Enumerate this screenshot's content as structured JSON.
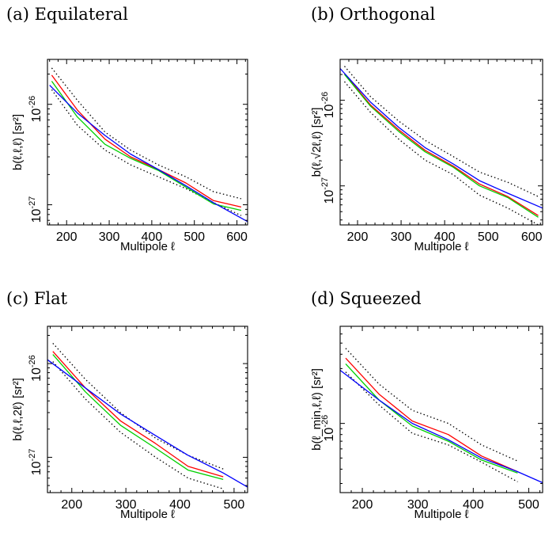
{
  "chart_data": [
    {
      "type": "line",
      "title": "(a) Equilateral",
      "xlabel": "Multipole ℓ",
      "ylabel": "b(ℓ,ℓ,ℓ) [sr²]",
      "yscale": "log",
      "xlim": [
        155,
        625
      ],
      "ylim": [
        6.3e-28,
        2.8e-26
      ],
      "xticks": [
        200,
        300,
        400,
        500,
        600
      ],
      "yticks": [
        {
          "value": 1e-26,
          "base": "10",
          "exp": "-26"
        },
        {
          "value": 1e-27,
          "base": "10",
          "exp": "-27"
        }
      ],
      "series": [
        {
          "color": "#000000",
          "dash": true,
          "x": [
            165,
            225,
            290,
            350,
            415,
            480,
            545,
            610
          ],
          "y": [
            2.3e-26,
            1.1e-26,
            5.3e-27,
            3.5e-27,
            2.5e-27,
            1.9e-27,
            1.35e-27,
            1.15e-27
          ]
        },
        {
          "color": "#000000",
          "dash": true,
          "x": [
            165,
            225,
            290,
            350,
            415,
            480,
            545,
            610
          ],
          "y": [
            1.4e-26,
            6.2e-27,
            3.5e-27,
            2.5e-27,
            1.9e-27,
            1.45e-27,
            1.05e-27,
            7.8e-28
          ]
        },
        {
          "color": "#ff0000",
          "x": [
            165,
            225,
            290,
            350,
            415,
            480,
            545,
            610
          ],
          "y": [
            1.95e-26,
            8.8e-27,
            4.5e-27,
            3e-27,
            2.25e-27,
            1.65e-27,
            1.1e-27,
            9.5e-28
          ]
        },
        {
          "color": "#00d000",
          "x": [
            165,
            225,
            290,
            350,
            415,
            480,
            545,
            610
          ],
          "y": [
            1.7e-26,
            7.5e-27,
            4e-27,
            2.9e-27,
            2.2e-27,
            1.5e-27,
            1.02e-27,
            8.8e-28
          ]
        },
        {
          "color": "#0000ff",
          "x": [
            160,
            225,
            290,
            350,
            415,
            480,
            545,
            625
          ],
          "y": [
            1.55e-26,
            8.2e-27,
            4.9e-27,
            3.2e-27,
            2.25e-27,
            1.55e-27,
            1.05e-27,
            6.8e-28
          ]
        }
      ]
    },
    {
      "type": "line",
      "title": "(b) Orthogonal",
      "xlabel": "Multipole ℓ",
      "ylabel": "b(ℓ,√2ℓ,ℓ) [sr²]",
      "yscale": "log",
      "xlim": [
        160,
        625
      ],
      "ylim": [
        3.5e-28,
        3e-26
      ],
      "xticks": [
        200,
        300,
        400,
        500,
        600
      ],
      "yticks": [
        {
          "value": 1e-26,
          "base": "10",
          "exp": "-26"
        },
        {
          "value": 1e-27,
          "base": "10",
          "exp": "-27"
        }
      ],
      "series": [
        {
          "color": "#000000",
          "dash": true,
          "x": [
            170,
            230,
            295,
            355,
            420,
            480,
            545,
            615
          ],
          "y": [
            2.5e-26,
            1.1e-26,
            5.7e-27,
            3.4e-27,
            2.2e-27,
            1.45e-27,
            1.1e-27,
            7.5e-28
          ]
        },
        {
          "color": "#000000",
          "dash": true,
          "x": [
            170,
            230,
            295,
            355,
            420,
            480,
            545,
            615
          ],
          "y": [
            1.65e-26,
            7.2e-27,
            3.5e-27,
            2e-27,
            1.35e-27,
            7.8e-28,
            5.5e-28,
            3.5e-28
          ]
        },
        {
          "color": "#ff0000",
          "x": [
            170,
            230,
            295,
            355,
            420,
            480,
            545,
            615
          ],
          "y": [
            2.05e-26,
            8.8e-27,
            4.5e-27,
            2.6e-27,
            1.7e-27,
            1.05e-27,
            7.5e-28,
            4.5e-28
          ]
        },
        {
          "color": "#00d000",
          "x": [
            170,
            230,
            295,
            355,
            420,
            480,
            545,
            615
          ],
          "y": [
            2e-26,
            8.5e-27,
            4.3e-27,
            2.5e-27,
            1.65e-27,
            1e-27,
            7.3e-28,
            4.3e-28
          ]
        },
        {
          "color": "#0000ff",
          "x": [
            160,
            230,
            295,
            355,
            420,
            480,
            545,
            625
          ],
          "y": [
            2.35e-26,
            9.5e-27,
            4.8e-27,
            2.8e-27,
            1.8e-27,
            1.15e-27,
            8.2e-28,
            5.5e-28
          ]
        }
      ]
    },
    {
      "type": "line",
      "title": "(c) Flat",
      "xlabel": "Multipole ℓ",
      "ylabel": "b(ℓ,ℓ,2ℓ) [sr²]",
      "yscale": "log",
      "xlim": [
        155,
        525
      ],
      "ylim": [
        4.2e-28,
        2.5e-26
      ],
      "xticks": [
        200,
        300,
        400,
        500
      ],
      "yticks": [
        {
          "value": 1e-26,
          "base": "10",
          "exp": "-26"
        },
        {
          "value": 1e-27,
          "base": "10",
          "exp": "-27"
        }
      ],
      "series": [
        {
          "color": "#000000",
          "dash": true,
          "x": [
            165,
            225,
            290,
            355,
            415,
            480
          ],
          "y": [
            1.65e-26,
            6.8e-27,
            3e-27,
            1.6e-27,
            1.05e-27,
            7.5e-28
          ]
        },
        {
          "color": "#000000",
          "dash": true,
          "x": [
            165,
            225,
            290,
            355,
            415,
            480
          ],
          "y": [
            1.05e-26,
            4.2e-27,
            1.85e-27,
            1e-27,
            6e-28,
            4.6e-28
          ]
        },
        {
          "color": "#ff0000",
          "x": [
            165,
            225,
            290,
            355,
            415,
            480
          ],
          "y": [
            1.35e-26,
            5.5e-27,
            2.45e-27,
            1.4e-27,
            8e-28,
            6.2e-28
          ]
        },
        {
          "color": "#00d000",
          "x": [
            165,
            225,
            290,
            355,
            415,
            480
          ],
          "y": [
            1.25e-26,
            5e-27,
            2.2e-27,
            1.25e-27,
            7.3e-28,
            5.8e-28
          ]
        },
        {
          "color": "#0000ff",
          "x": [
            155,
            225,
            290,
            355,
            415,
            480,
            525
          ],
          "y": [
            1.1e-26,
            5.5e-27,
            2.9e-27,
            1.7e-27,
            1.05e-27,
            6.8e-28,
            4.8e-28
          ]
        }
      ]
    },
    {
      "type": "line",
      "title": "(d) Squeezed",
      "xlabel": "Multipole ℓ",
      "ylabel": "b(ℓ_min,ℓ,ℓ) [sr²]",
      "yscale": "log",
      "xlim": [
        160,
        525
      ],
      "ylim": [
        2.5e-27,
        7e-26
      ],
      "xticks": [
        200,
        300,
        400,
        500
      ],
      "yticks": [
        {
          "value": 1e-26,
          "base": "10",
          "exp": "-26"
        }
      ],
      "series": [
        {
          "color": "#000000",
          "dash": true,
          "x": [
            170,
            230,
            290,
            355,
            415,
            480
          ],
          "y": [
            4.5e-26,
            2.2e-26,
            1.3e-26,
            1e-26,
            6.5e-27,
            4.7e-27
          ]
        },
        {
          "color": "#000000",
          "dash": true,
          "x": [
            170,
            230,
            290,
            355,
            415,
            480
          ],
          "y": [
            2.8e-26,
            1.45e-26,
            8.2e-27,
            6.5e-27,
            4.6e-27,
            3.1e-27
          ]
        },
        {
          "color": "#ff0000",
          "x": [
            170,
            230,
            290,
            355,
            415,
            480
          ],
          "y": [
            3.7e-26,
            1.8e-26,
            1.05e-26,
            8e-27,
            5.2e-27,
            3.8e-27
          ]
        },
        {
          "color": "#00d000",
          "x": [
            170,
            230,
            290,
            355,
            415,
            480
          ],
          "y": [
            3.3e-26,
            1.6e-26,
            9.5e-27,
            7e-27,
            4.8e-27,
            3.7e-27
          ]
        },
        {
          "color": "#0000ff",
          "x": [
            160,
            230,
            290,
            355,
            415,
            480,
            525
          ],
          "y": [
            2.9e-26,
            1.6e-26,
            1e-26,
            7.2e-27,
            5e-27,
            3.8e-27,
            3.05e-27
          ]
        }
      ]
    }
  ]
}
